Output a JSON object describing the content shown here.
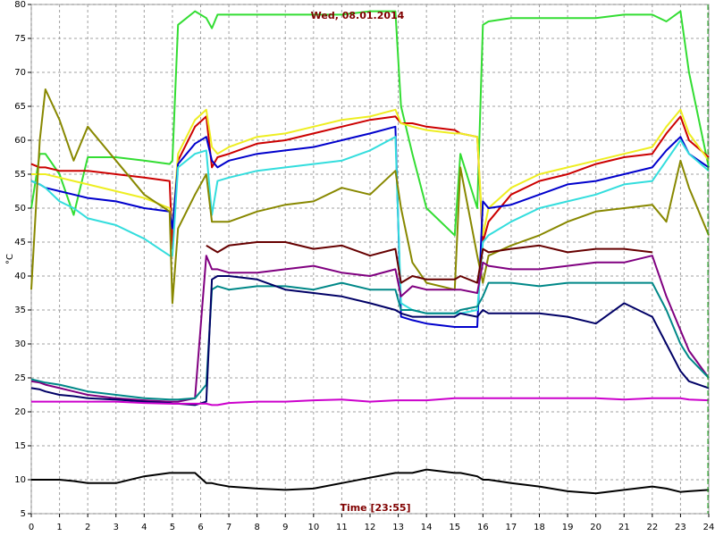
{
  "chart_data": {
    "type": "line",
    "title": "Wed, 08.01.2014",
    "x_label": "Time [23:55]",
    "y_label": "°C",
    "x": [
      0,
      0.3,
      0.5,
      1,
      1.5,
      2,
      3,
      4,
      4.9,
      5,
      5.2,
      5.8,
      6.2,
      6.4,
      6.6,
      7,
      8,
      9,
      10,
      11,
      12,
      12.9,
      13.1,
      13.5,
      14,
      15,
      15.2,
      15.8,
      16,
      16.2,
      17,
      18,
      19,
      20,
      21,
      22,
      22.5,
      23,
      23.3,
      24
    ],
    "series": [
      {
        "color": "#33dd33",
        "values": [
          50,
          58,
          58,
          55,
          49,
          57.5,
          57.5,
          57,
          56.5,
          57,
          77,
          79,
          78,
          76.5,
          78.5,
          78.5,
          78.5,
          78.5,
          78.5,
          78.5,
          79,
          79,
          65,
          58,
          50,
          46,
          58,
          50,
          77,
          77.5,
          78,
          78,
          78,
          78,
          78.5,
          78.5,
          77.5,
          79,
          70,
          56
        ]
      },
      {
        "color": "#cc0000",
        "values": [
          56.5,
          56,
          56,
          55.5,
          55.5,
          55.5,
          55,
          54.5,
          54,
          44,
          57,
          62,
          63.5,
          56,
          57.5,
          58,
          59.5,
          60,
          61,
          62,
          63,
          63.5,
          62.5,
          62.5,
          62,
          61.5,
          61,
          60.5,
          45,
          48,
          52,
          54,
          55,
          56.5,
          57.5,
          58,
          61,
          63.5,
          60,
          57.5
        ]
      },
      {
        "color": "#eeee22",
        "values": [
          55,
          55,
          55,
          54.5,
          54,
          53.5,
          52.5,
          51.5,
          50,
          47,
          58,
          63,
          64.5,
          59,
          58,
          59,
          60.5,
          61,
          62,
          63,
          63.5,
          64.5,
          62.5,
          62,
          61.5,
          61,
          61,
          60.5,
          46,
          50,
          53,
          55,
          56,
          57,
          58,
          59,
          62,
          64.5,
          61,
          57
        ]
      },
      {
        "color": "#0000cc",
        "values": [
          54,
          53.5,
          53,
          52.5,
          52,
          51.5,
          51,
          50,
          49.5,
          47,
          56.5,
          59.5,
          60.5,
          57,
          56,
          57,
          58,
          58.5,
          59,
          60,
          61,
          62,
          34,
          33.5,
          33,
          32.5,
          32.5,
          32.5,
          51,
          50,
          50.5,
          52,
          53.5,
          54,
          55,
          56,
          58.5,
          60.5,
          58,
          56
        ]
      },
      {
        "color": "#33dddd",
        "values": [
          54,
          53.5,
          53,
          51,
          50,
          48.5,
          47.5,
          45.5,
          43,
          43,
          56,
          58,
          58.5,
          49,
          54,
          54.5,
          55.5,
          56,
          56.5,
          57,
          58.5,
          60.5,
          36,
          35,
          34.5,
          34.5,
          34.5,
          35,
          45,
          46,
          48,
          50,
          51,
          52,
          53.5,
          54,
          57,
          60,
          58,
          55.5
        ]
      },
      {
        "color": "#888800",
        "values": [
          38,
          60,
          67.5,
          63,
          57,
          62,
          57,
          52,
          49.5,
          36,
          47,
          52,
          55,
          48,
          48,
          48,
          49.5,
          50.5,
          51,
          53,
          52,
          55.5,
          50,
          42,
          39,
          38,
          56,
          43,
          39,
          43,
          44.5,
          46,
          48,
          49.5,
          50,
          50.5,
          48,
          57,
          53,
          46
        ]
      },
      {
        "color": "#660000",
        "values": [
          null,
          null,
          null,
          null,
          null,
          null,
          null,
          null,
          null,
          null,
          null,
          null,
          44.5,
          44,
          43.5,
          44.5,
          45,
          45,
          44,
          44.5,
          43,
          44,
          39,
          40,
          39.5,
          39.5,
          40,
          39,
          44,
          43.5,
          44,
          44.5,
          43.5,
          44,
          44,
          43.5,
          null,
          null,
          null,
          null
        ]
      },
      {
        "color": "#800080",
        "values": [
          24.5,
          24.3,
          24,
          23.5,
          23,
          22.5,
          22,
          21.7,
          21.5,
          21.5,
          21.5,
          22,
          43,
          41,
          41,
          40.5,
          40.5,
          41,
          41.5,
          40.5,
          40,
          41,
          37,
          38.5,
          38,
          38,
          38,
          37.5,
          42,
          41.5,
          41,
          41,
          41.5,
          42,
          42,
          43,
          37,
          32,
          29,
          25
        ]
      },
      {
        "color": "#008888",
        "values": [
          24.8,
          24.5,
          24.3,
          24,
          23.5,
          23,
          22.5,
          22,
          21.8,
          21.8,
          21.8,
          22,
          24,
          38,
          38.5,
          38,
          38.5,
          38.5,
          38,
          39,
          38,
          38,
          35,
          35,
          34.5,
          34.5,
          35,
          35.5,
          37,
          39,
          39,
          38.5,
          39,
          39,
          39,
          39,
          35,
          30,
          28,
          25
        ]
      },
      {
        "color": "#000066",
        "values": [
          23.5,
          23.3,
          23,
          22.5,
          22.3,
          22,
          21.8,
          21.5,
          21.3,
          21.2,
          21.2,
          21,
          21.5,
          39.5,
          40,
          40,
          39.5,
          38,
          37.5,
          37,
          36,
          35,
          34.5,
          34,
          34,
          34,
          34.5,
          34,
          35,
          34.5,
          34.5,
          34.5,
          34,
          33,
          36,
          34,
          30,
          26,
          24.5,
          23.5
        ]
      },
      {
        "color": "#cc00cc",
        "values": [
          21.5,
          21.5,
          21.5,
          21.5,
          21.5,
          21.5,
          21.5,
          21.3,
          21.2,
          21.2,
          21.2,
          21.2,
          21.2,
          21,
          21,
          21.3,
          21.5,
          21.5,
          21.7,
          21.8,
          21.5,
          21.7,
          21.7,
          21.7,
          21.7,
          22,
          22,
          22,
          22,
          22,
          22,
          22,
          22,
          22,
          21.8,
          22,
          22,
          22,
          21.8,
          21.7
        ]
      },
      {
        "color": "#000000",
        "values": [
          10,
          10,
          10,
          10,
          9.8,
          9.5,
          9.5,
          10.5,
          11,
          11,
          11,
          11,
          9.5,
          9.5,
          9.3,
          9,
          8.7,
          8.5,
          8.7,
          9.5,
          10.3,
          11,
          11,
          11,
          11.5,
          11,
          11,
          10.5,
          10,
          10,
          9.5,
          9,
          8.3,
          8,
          8.5,
          9,
          8.7,
          8.2,
          8.3,
          8.5
        ]
      }
    ],
    "xlim": [
      0,
      24
    ],
    "ylim": [
      5,
      80
    ],
    "xticks": [
      0,
      1,
      2,
      3,
      4,
      5,
      6,
      7,
      8,
      9,
      10,
      11,
      12,
      13,
      14,
      15,
      16,
      17,
      18,
      19,
      20,
      21,
      22,
      23,
      24
    ],
    "yticks": [
      5,
      10,
      15,
      20,
      25,
      30,
      35,
      40,
      45,
      50,
      55,
      60,
      65,
      70,
      75,
      80
    ],
    "grid": true
  }
}
